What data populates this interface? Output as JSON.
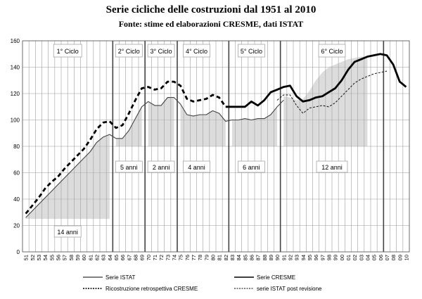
{
  "chart_data": {
    "type": "line",
    "title": "Serie cicliche delle costruzioni dal 1951 al 2010",
    "subtitle": "Fonte: stime ed elaborazioni CRESME, dati ISTAT",
    "ylim": [
      0,
      160
    ],
    "yticks": [
      0,
      20,
      40,
      60,
      80,
      100,
      120,
      140,
      160
    ],
    "x_labels": [
      "51",
      "52",
      "53",
      "54",
      "55",
      "56",
      "57",
      "58",
      "59",
      "60",
      "61",
      "62",
      "63",
      "64",
      "65",
      "66",
      "67",
      "68",
      "69",
      "70",
      "71",
      "72",
      "73",
      "74",
      "75",
      "76",
      "77",
      "78",
      "79",
      "80",
      "81",
      "82",
      "83",
      "84",
      "85",
      "86",
      "87",
      "88",
      "89",
      "90",
      "91",
      "92",
      "93",
      "94",
      "95",
      "96",
      "97",
      "98",
      "99",
      "00",
      "01",
      "02",
      "03",
      "04",
      "05",
      "06",
      "07",
      "08",
      "09",
      "10"
    ],
    "grid": true,
    "legend_position": "bottom",
    "series": [
      {
        "name": "Serie ISTAT",
        "style": "solid-thin",
        "x": [
          1951,
          1952,
          1953,
          1954,
          1955,
          1956,
          1957,
          1958,
          1959,
          1960,
          1961,
          1962,
          1963,
          1964,
          1965,
          1966,
          1967,
          1968,
          1969,
          1970,
          1971,
          1972,
          1973,
          1974,
          1975,
          1976,
          1977,
          1978,
          1979,
          1980,
          1981,
          1982,
          1983,
          1984,
          1985,
          1986,
          1987,
          1988,
          1989,
          1990,
          1991
        ],
        "values": [
          26,
          31,
          36,
          41,
          46,
          51,
          56,
          61,
          66,
          71,
          76,
          83,
          87,
          89,
          86,
          86,
          92,
          101,
          110,
          114,
          111,
          111,
          117,
          117,
          112,
          104,
          103,
          104,
          104,
          107,
          105,
          99,
          100,
          100,
          101,
          100,
          101,
          101,
          104,
          110,
          115
        ]
      },
      {
        "name": "Serie CRESME",
        "style": "solid-thick",
        "x": [
          1982,
          1983,
          1984,
          1985,
          1986,
          1987,
          1988,
          1989,
          1990,
          1991,
          1992,
          1993,
          1994,
          1995,
          1996,
          1997,
          1998,
          1999,
          2000,
          2001,
          2002,
          2003,
          2004,
          2005,
          2006,
          2007,
          2008,
          2009,
          2010
        ],
        "values": [
          110,
          110,
          110,
          110,
          114,
          111,
          115,
          121,
          123,
          125,
          126,
          118,
          114,
          115,
          117,
          118,
          121,
          124,
          130,
          138,
          144,
          146,
          148,
          149,
          150,
          149,
          142,
          129,
          125
        ]
      },
      {
        "name": "Ricostruzione retrospettiva CRESME",
        "style": "dashed-thick",
        "x": [
          1951,
          1952,
          1953,
          1954,
          1955,
          1956,
          1957,
          1958,
          1959,
          1960,
          1961,
          1962,
          1963,
          1964,
          1965,
          1966,
          1967,
          1968,
          1969,
          1970,
          1971,
          1972,
          1973,
          1974,
          1975,
          1976,
          1977,
          1978,
          1979,
          1980,
          1981,
          1982
        ],
        "values": [
          29,
          35,
          41,
          48,
          53,
          57,
          63,
          68,
          73,
          78,
          85,
          93,
          98,
          99,
          94,
          96,
          105,
          115,
          124,
          125,
          123,
          124,
          129,
          129,
          126,
          116,
          114,
          115,
          116,
          119,
          117,
          110
        ]
      },
      {
        "name": "serie ISTAT post revisione",
        "style": "dashed-thin",
        "x": [
          1990,
          1991,
          1992,
          1993,
          1994,
          1995,
          1996,
          1997,
          1998,
          1999,
          2000,
          2001,
          2002,
          2003,
          2004,
          2005,
          2006,
          2007
        ],
        "values": [
          115,
          119,
          119,
          111,
          105,
          109,
          110,
          111,
          110,
          113,
          118,
          123,
          128,
          131,
          133,
          135,
          136,
          137
        ]
      }
    ],
    "cycles": [
      {
        "label": "1° Ciclo",
        "duration": "14 anni",
        "start": 1951,
        "end": 1964
      },
      {
        "label": "2° Ciclo",
        "duration": "5 anni",
        "start": 1965,
        "end": 1969
      },
      {
        "label": "3° Ciclo",
        "duration": "2 anni",
        "start": 1970,
        "end": 1971
      },
      {
        "label": "4° Ciclo",
        "duration": "4 anni",
        "start": 1975,
        "end": 1978
      },
      {
        "label": "5° Ciclo",
        "duration": "6 anni",
        "start": 1983,
        "end": 1988
      },
      {
        "label": "6° Ciclo",
        "duration": "12 anni",
        "start": 1993,
        "end": 2004
      }
    ],
    "cycle_boundaries": [
      1964.5,
      1969.5,
      1974.5,
      1982.5,
      1990.5,
      2006.5
    ]
  }
}
